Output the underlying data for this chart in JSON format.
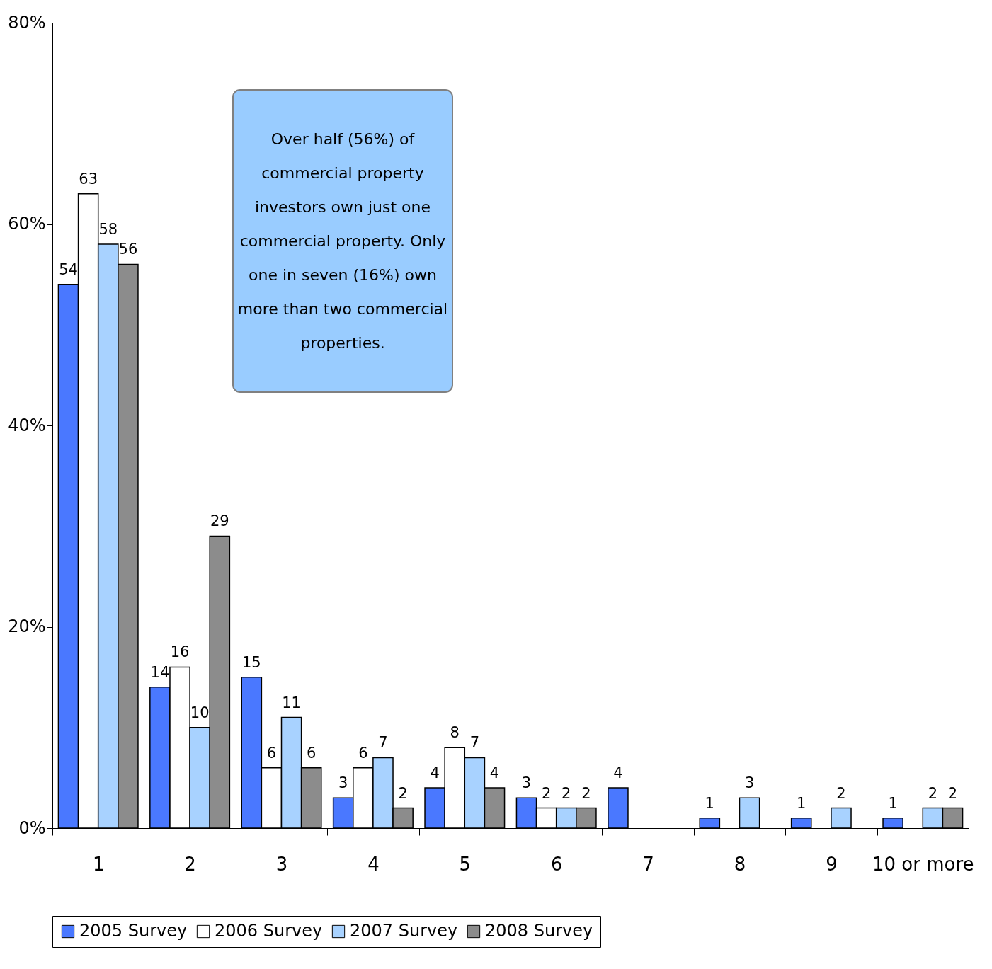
{
  "chart_data": {
    "type": "bar",
    "categories": [
      "1",
      "2",
      "3",
      "4",
      "5",
      "6",
      "7",
      "8",
      "9",
      "10 or more"
    ],
    "series": [
      {
        "name": "2005 Survey",
        "color": "#4a78ff",
        "values": [
          54,
          14,
          15,
          3,
          4,
          3,
          4,
          1,
          1,
          1
        ]
      },
      {
        "name": "2006 Survey",
        "color": "#ffffff",
        "values": [
          63,
          16,
          6,
          6,
          8,
          2,
          null,
          null,
          null,
          null
        ]
      },
      {
        "name": "2007 Survey",
        "color": "#a8d2ff",
        "values": [
          58,
          10,
          11,
          7,
          7,
          2,
          null,
          3,
          2,
          2
        ]
      },
      {
        "name": "2008 Survey",
        "color": "#8c8c8c",
        "values": [
          56,
          29,
          6,
          2,
          4,
          2,
          null,
          null,
          null,
          2
        ]
      }
    ],
    "ylim": [
      0,
      80
    ],
    "yticks": [
      {
        "value": 0,
        "label": "0%"
      },
      {
        "value": 20,
        "label": "20%"
      },
      {
        "value": 40,
        "label": "40%"
      },
      {
        "value": 60,
        "label": "60%"
      },
      {
        "value": 80,
        "label": "80%"
      }
    ],
    "data_labels": true,
    "grid": false,
    "legend": "bottom",
    "annotations": [
      "Over half (56%) of commercial property investors own just one commercial property. Only one in seven (16%) own more than two commercial properties."
    ]
  }
}
